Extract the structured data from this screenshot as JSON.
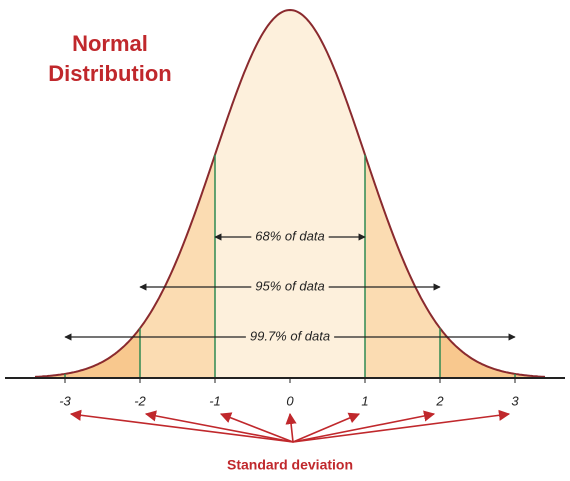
{
  "chart_data": {
    "type": "normal",
    "title": [
      "Normal",
      "Distribution"
    ],
    "xlim": [
      -3.4,
      3.4
    ],
    "xticks": [
      -3,
      -2,
      -1,
      0,
      1,
      2,
      3
    ],
    "annotations": [
      "68% of data",
      "95% of data",
      "99.7% of data"
    ],
    "xlabel": "Standard deviation",
    "color": "#8a2a2e"
  }
}
